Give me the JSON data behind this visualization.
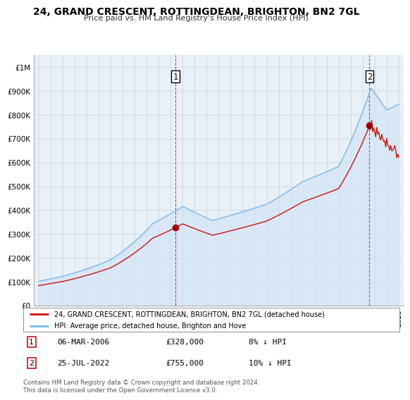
{
  "title": "24, GRAND CRESCENT, ROTTINGDEAN, BRIGHTON, BN2 7GL",
  "subtitle": "Price paid vs. HM Land Registry's House Price Index (HPI)",
  "sale1_date": 2006.42,
  "sale1_price": 328000,
  "sale1_label": "1",
  "sale2_date": 2022.56,
  "sale2_price": 755000,
  "sale2_label": "2",
  "hpi_color": "#7ab8e8",
  "property_color": "#cc1111",
  "marker_color": "#990000",
  "legend1": "24, GRAND CRESCENT, ROTTINGDEAN, BRIGHTON, BN2 7GL (detached house)",
  "legend2": "HPI: Average price, detached house, Brighton and Hove",
  "footer": "Contains HM Land Registry data © Crown copyright and database right 2024.\nThis data is licensed under the Open Government Licence v3.0.",
  "ylim_max": 1050000,
  "background_color": "#ffffff",
  "plot_bg_color": "#e8f0f8",
  "grid_color": "#c8d4e0"
}
